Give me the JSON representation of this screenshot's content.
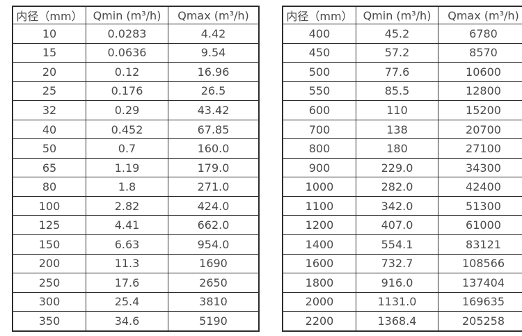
{
  "colors": {
    "background": "#ffffff",
    "border": "#2d2d2d",
    "text": "#4a4a4a"
  },
  "tables": [
    {
      "name": "flow-rate-table-small-diameters",
      "headers": [
        "内径（mm）",
        "Qmin (m³/h)",
        "Qmax (m³/h)"
      ],
      "rows": [
        [
          "10",
          "0.0283",
          "4.42"
        ],
        [
          "15",
          "0.0636",
          "9.54"
        ],
        [
          "20",
          "0.12",
          "16.96"
        ],
        [
          "25",
          "0.176",
          "26.5"
        ],
        [
          "32",
          "0.29",
          "43.42"
        ],
        [
          "40",
          "0.452",
          "67.85"
        ],
        [
          "50",
          "0.7",
          "160.0"
        ],
        [
          "65",
          "1.19",
          "179.0"
        ],
        [
          "80",
          "1.8",
          "271.0"
        ],
        [
          "100",
          "2.82",
          "424.0"
        ],
        [
          "125",
          "4.41",
          "662.0"
        ],
        [
          "150",
          "6.63",
          "954.0"
        ],
        [
          "200",
          "11.3",
          "1690"
        ],
        [
          "250",
          "17.6",
          "2650"
        ],
        [
          "300",
          "25.4",
          "3810"
        ],
        [
          "350",
          "34.6",
          "5190"
        ]
      ]
    },
    {
      "name": "flow-rate-table-large-diameters",
      "headers": [
        "内径（mm）",
        "Qmin (m³/h)",
        "Qmax (m³/h)"
      ],
      "rows": [
        [
          "400",
          "45.2",
          "6780"
        ],
        [
          "450",
          "57.2",
          "8570"
        ],
        [
          "500",
          "77.6",
          "10600"
        ],
        [
          "550",
          "85.5",
          "12800"
        ],
        [
          "600",
          "110",
          "15200"
        ],
        [
          "700",
          "138",
          "20700"
        ],
        [
          "800",
          "180",
          "27100"
        ],
        [
          "900",
          "229.0",
          "34300"
        ],
        [
          "1000",
          "282.0",
          "42400"
        ],
        [
          "1100",
          "342.0",
          "51300"
        ],
        [
          "1200",
          "407.0",
          "61000"
        ],
        [
          "1400",
          "554.1",
          "83121"
        ],
        [
          "1600",
          "732.7",
          "108566"
        ],
        [
          "1800",
          "916.0",
          "137404"
        ],
        [
          "2000",
          "1131.0",
          "169635"
        ],
        [
          "2200",
          "1368.4",
          "205258"
        ]
      ]
    }
  ]
}
